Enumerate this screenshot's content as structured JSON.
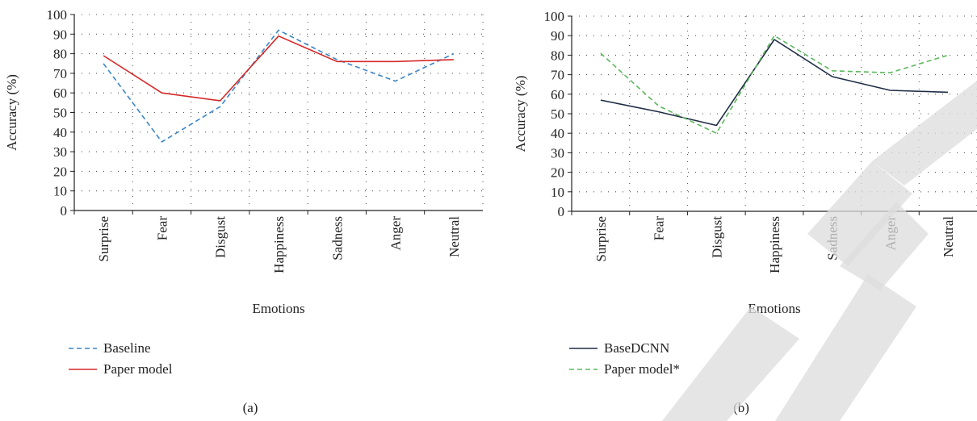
{
  "chart_data": [
    {
      "type": "line",
      "panel_label": "(a)",
      "xlabel": "Emotions",
      "ylabel": "Accuracy (%)",
      "ylim": [
        0,
        100
      ],
      "yticks": [
        "0",
        "10",
        "20",
        "30",
        "40",
        "50",
        "60",
        "70",
        "80",
        "90",
        "100"
      ],
      "categories": [
        "Surprise",
        "Fear",
        "Disgust",
        "Happiness",
        "Sadness",
        "Anger",
        "Neutral"
      ],
      "grid": "dotted",
      "legend_position": "bottom-left",
      "series": [
        {
          "name": "Baseline",
          "color": "#3a86c8",
          "style": "dashed",
          "values": [
            75,
            35,
            53,
            92,
            77,
            66,
            80
          ]
        },
        {
          "name": "Paper model",
          "color": "#d62728",
          "style": "solid",
          "values": [
            79,
            60,
            56,
            89,
            76,
            76,
            77
          ]
        }
      ]
    },
    {
      "type": "line",
      "panel_label": "(b)",
      "xlabel": "Emotions",
      "ylabel": "Accuracy (%)",
      "ylim": [
        0,
        100
      ],
      "yticks": [
        "0",
        "10",
        "20",
        "30",
        "40",
        "50",
        "60",
        "70",
        "80",
        "90",
        "100"
      ],
      "categories": [
        "Surprise",
        "Fear",
        "Disgust",
        "Happiness",
        "Sadness",
        "Anger",
        "Neutral"
      ],
      "grid": "dotted",
      "legend_position": "bottom-left",
      "series": [
        {
          "name": "BaseDCNN",
          "color": "#1f2d45",
          "style": "solid",
          "values": [
            57,
            51,
            44,
            88,
            69,
            62,
            61
          ]
        },
        {
          "name": "Paper model*",
          "color": "#5cb85c",
          "style": "dashed",
          "values": [
            81,
            54,
            40,
            90,
            72,
            71,
            80
          ]
        }
      ]
    }
  ],
  "watermark": {
    "color": "#dcdcdc"
  }
}
